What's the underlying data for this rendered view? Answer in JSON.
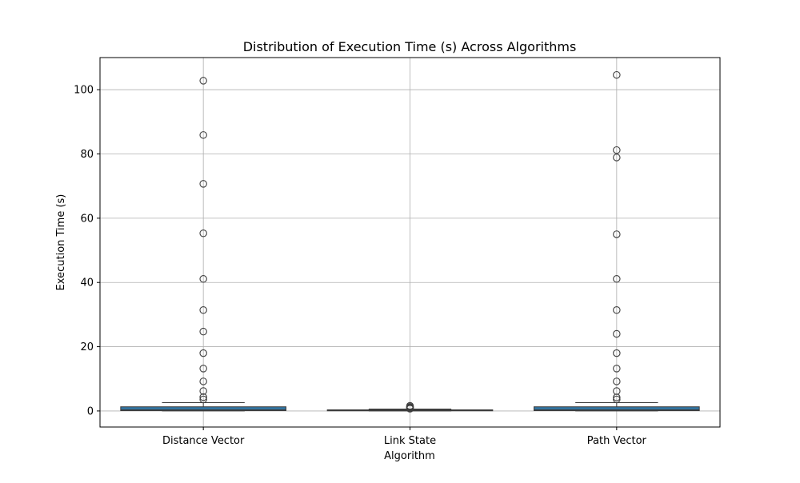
{
  "colors": {
    "box_fill": "#3274a1",
    "edge": "#3d3d3d",
    "grid": "#b0b0b0"
  },
  "chart_data": {
    "type": "box",
    "title": "Distribution of Execution Time (s) Across Algorithms",
    "xlabel": "Algorithm",
    "ylabel": "Execution Time (s)",
    "ylim": [
      -5,
      110
    ],
    "yticks": [
      0,
      20,
      40,
      60,
      80,
      100
    ],
    "grid": true,
    "categories": [
      "Distance Vector",
      "Link State",
      "Path Vector"
    ],
    "boxes": [
      {
        "name": "Distance Vector",
        "whisker_low": 0.0,
        "q1": 0.1,
        "median": 0.35,
        "q3": 1.3,
        "whisker_high": 2.6,
        "outliers": [
          3.6,
          4.3,
          6.2,
          9.2,
          13.2,
          18.0,
          24.7,
          31.4,
          41.1,
          55.3,
          70.7,
          85.9,
          102.8
        ]
      },
      {
        "name": "Link State",
        "whisker_low": 0.0,
        "q1": 0.05,
        "median": 0.15,
        "q3": 0.35,
        "whisker_high": 0.6,
        "outliers": [
          0.7,
          0.9,
          1.1,
          1.3,
          1.6
        ]
      },
      {
        "name": "Path Vector",
        "whisker_low": 0.0,
        "q1": 0.1,
        "median": 0.35,
        "q3": 1.3,
        "whisker_high": 2.6,
        "outliers": [
          3.6,
          4.2,
          6.2,
          9.2,
          13.2,
          18.0,
          24.0,
          31.4,
          41.1,
          55.0,
          78.9,
          81.2,
          104.6
        ]
      }
    ]
  }
}
